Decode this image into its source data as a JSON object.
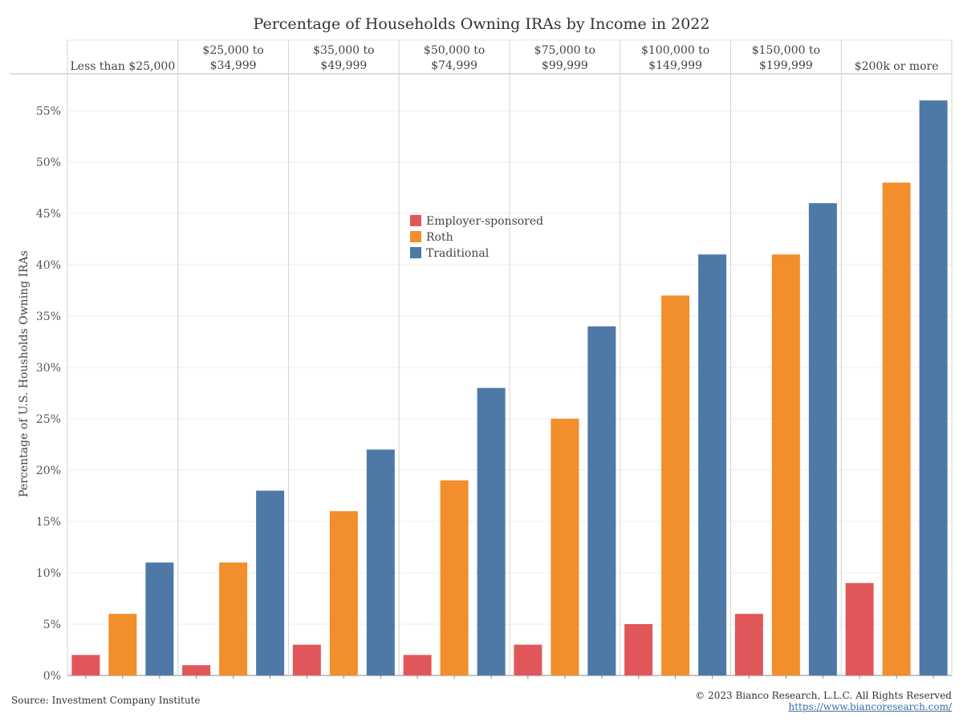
{
  "chart_data": {
    "type": "bar",
    "title": "Percentage of Households Owning IRAs by Income in 2022",
    "ylabel": "Percentage of U.S. Housholds Owning IRAs",
    "xlabel": "",
    "ylim": [
      0,
      57
    ],
    "yticks": [
      0,
      5,
      10,
      15,
      20,
      25,
      30,
      35,
      40,
      45,
      50,
      55
    ],
    "ytick_labels": [
      "0%",
      "5%",
      "10%",
      "15%",
      "20%",
      "25%",
      "30%",
      "35%",
      "40%",
      "45%",
      "50%",
      "55%"
    ],
    "categories": [
      [
        "Less than $25,000"
      ],
      [
        "$25,000 to",
        "$34,999"
      ],
      [
        "$35,000 to",
        "$49,999"
      ],
      [
        "$50,000 to",
        "$74,999"
      ],
      [
        "$75,000 to",
        "$99,999"
      ],
      [
        "$100,000 to",
        "$149,999"
      ],
      [
        "$150,000 to",
        "$199,999"
      ],
      [
        "$200k or more"
      ]
    ],
    "series": [
      {
        "name": "Employer-sponsored",
        "color": "#e15759",
        "values": [
          2,
          1,
          3,
          2,
          3,
          5,
          6,
          9
        ]
      },
      {
        "name": "Roth",
        "color": "#f28e2b",
        "values": [
          6,
          11,
          16,
          19,
          25,
          37,
          41,
          48
        ]
      },
      {
        "name": "Traditional",
        "color": "#4e79a7",
        "values": [
          11,
          18,
          22,
          28,
          34,
          41,
          46,
          56
        ]
      }
    ],
    "legend_position": "center",
    "grid": true
  },
  "footer": {
    "source": "Source: Investment Company Institute",
    "copyright": "© 2023 Bianco Research, L.L.C. All Rights Reserved",
    "url": "https://www.biancoresearch.com/"
  }
}
